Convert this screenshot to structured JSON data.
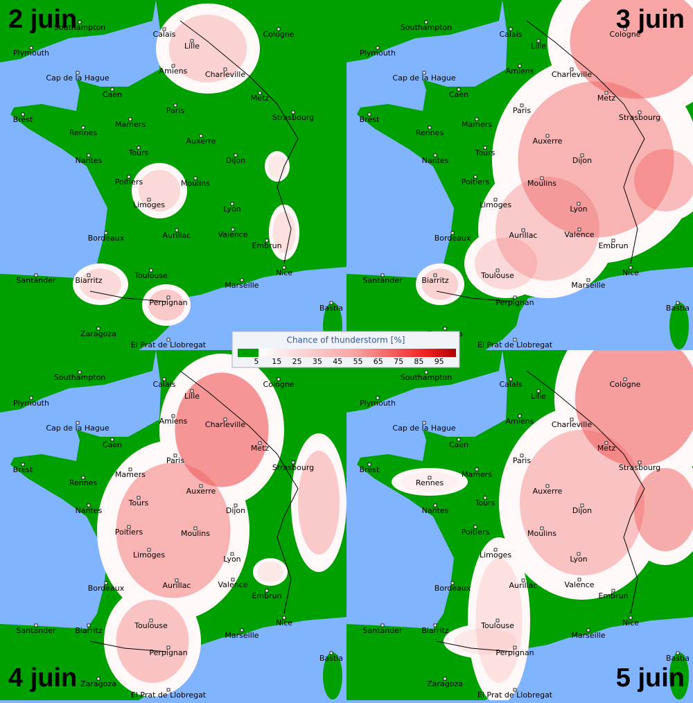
{
  "panels": [
    {
      "title": "2 juin"
    },
    {
      "title": "3 juin"
    },
    {
      "title": "4 juin"
    },
    {
      "title": "5 juin"
    }
  ],
  "cities": [
    "Southampton",
    "Plymouth",
    "Calais",
    "Lille",
    "Cologne",
    "Amiens",
    "Charleville",
    "Cap de la Hague",
    "Caen",
    "Metz",
    "Paris",
    "Brest",
    "Mamers",
    "Strasbourg",
    "Rennes",
    "Auxerre",
    "Tours",
    "Nantes",
    "Dijon",
    "Poitiers",
    "Moulins",
    "Limoges",
    "Lyon",
    "Bordeaux",
    "Aurillac",
    "Valence",
    "Embrun",
    "Nice",
    "Santander",
    "Biarritz",
    "Toulouse",
    "Marseille",
    "Perpignan",
    "Bastia",
    "Zaragoza",
    "El Prat de Llobregat"
  ],
  "legend": {
    "title": "Chance of thunderstorm [%]",
    "labels": [
      5,
      15,
      25,
      35,
      45,
      55,
      65,
      75,
      85,
      95
    ]
  }
}
